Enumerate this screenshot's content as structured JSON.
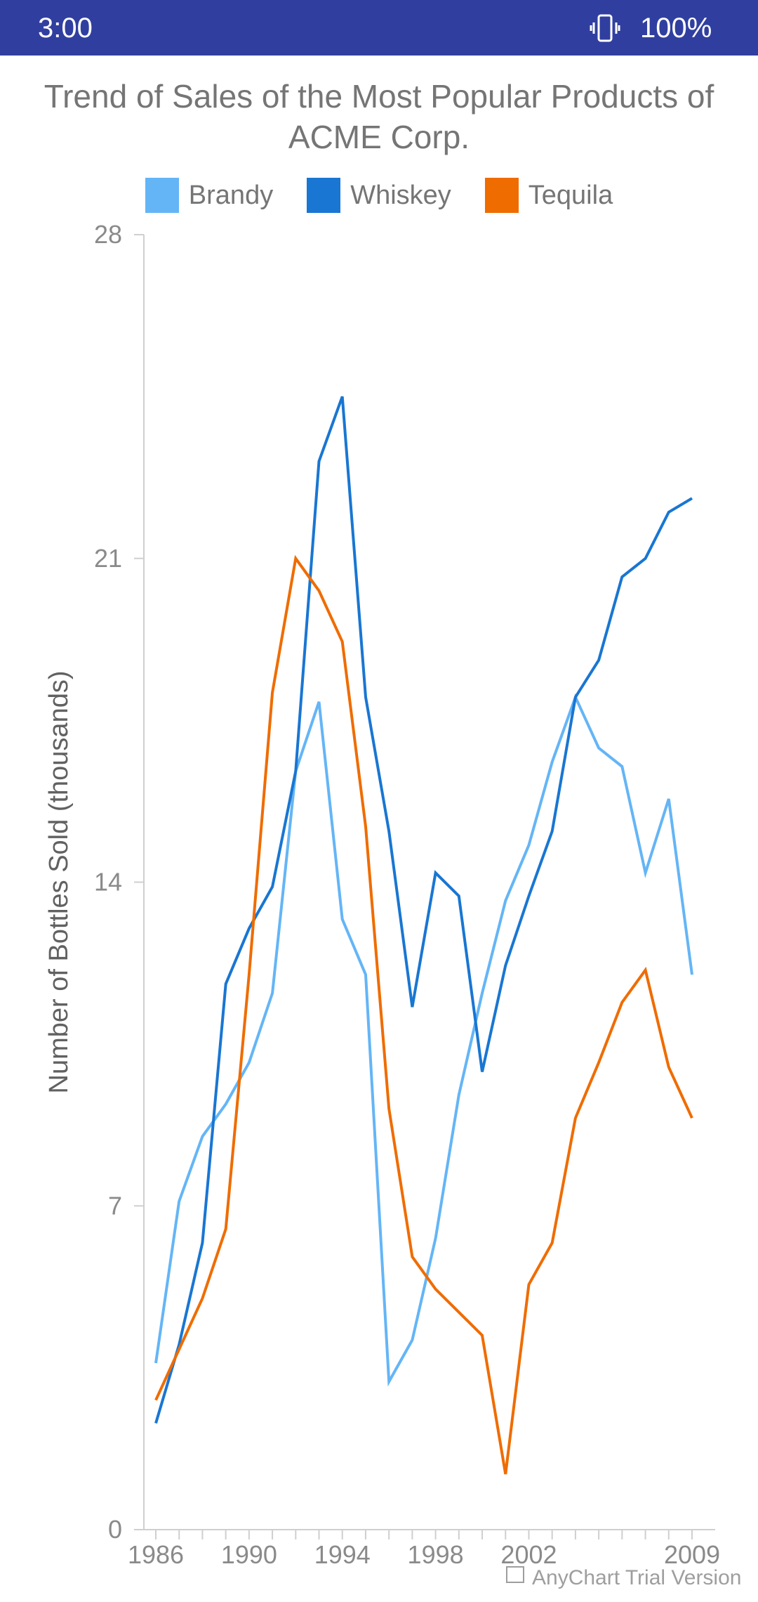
{
  "status_bar": {
    "time": "3:00",
    "battery": "100%",
    "background": "#303F9F"
  },
  "watermark": "AnyChart Trial Version",
  "chart_data": {
    "type": "line",
    "title": "Trend of Sales of the Most Popular Products of ACME Corp.",
    "xlabel": "",
    "ylabel": "Number of Bottles Sold (thousands)",
    "ylim": [
      0,
      28
    ],
    "yticks": [
      "0",
      "7",
      "14",
      "21",
      "28"
    ],
    "xticks": [
      "1986",
      "1990",
      "1994",
      "1998",
      "2002",
      "2009"
    ],
    "grid": false,
    "legend_position": "top-center",
    "x": [
      "1986",
      "1987",
      "1988",
      "1989",
      "1990",
      "1991",
      "1992",
      "1993",
      "1994",
      "1995",
      "1996",
      "1997",
      "1998",
      "1999",
      "2000",
      "2001",
      "2002",
      "2003",
      "2004",
      "2005",
      "2006",
      "2007",
      "2008",
      "2009"
    ],
    "series": [
      {
        "name": "Brandy",
        "color": "#64B5F6",
        "values": [
          3.6,
          7.1,
          8.5,
          9.2,
          10.1,
          11.6,
          16.4,
          17.9,
          13.2,
          12.0,
          3.2,
          4.1,
          6.3,
          9.4,
          11.6,
          13.6,
          14.8,
          16.6,
          18.0,
          16.9,
          16.5,
          14.2,
          15.8,
          12.0
        ]
      },
      {
        "name": "Whiskey",
        "color": "#1976D2",
        "values": [
          2.3,
          4.0,
          6.2,
          11.8,
          13.0,
          13.9,
          16.4,
          23.1,
          24.5,
          18.0,
          15.1,
          11.3,
          14.2,
          13.7,
          9.9,
          12.2,
          13.7,
          15.1,
          18.0,
          18.8,
          20.6,
          21.0,
          22.0,
          22.3
        ]
      },
      {
        "name": "Tequila",
        "color": "#EF6C00",
        "values": [
          2.8,
          3.9,
          5.0,
          6.5,
          12.0,
          18.1,
          21.0,
          20.3,
          19.2,
          15.2,
          9.1,
          5.9,
          5.2,
          4.7,
          4.2,
          1.2,
          5.3,
          6.2,
          8.9,
          10.1,
          11.4,
          12.1,
          10.0,
          8.9
        ]
      }
    ]
  }
}
